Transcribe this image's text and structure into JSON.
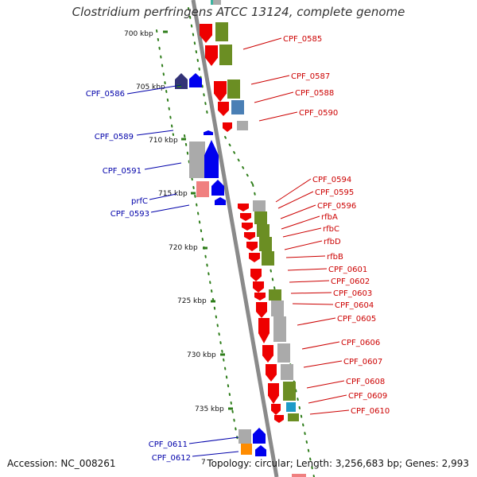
{
  "title": "Clostridium perfringens ATCC 13124, complete genome",
  "footer": {
    "accession_label": "Accession:",
    "accession_value": "NC_008261",
    "stats_text": "Topology: circular; Length: 3,256,683 bp; Genes: 2,993"
  },
  "colors": {
    "backbone": "#8a8a8a",
    "tick": "#2e7d1a",
    "forward_label": "#cc0000",
    "reverse_label": "#0000aa",
    "red_gene": "#ee0000",
    "blue_gene": "#0000ee",
    "navy_gene": "#333377",
    "olive_feature": "#6b8e23",
    "gray_feature": "#aaaaaa",
    "steel_feature": "#4a7fb5",
    "pink_feature": "#f08080",
    "orange_feature": "#ff8c00",
    "cyan_feature": "#1e9bc8",
    "teal_feature": "#3cb3a0"
  },
  "scale_labels": [
    "700 kbp",
    "705 kbp",
    "710 kbp",
    "715 kbp",
    "720 kbp",
    "725 kbp",
    "730 kbp",
    "735 kbp",
    "7"
  ],
  "forward_labels": [
    "CPF_0585",
    "CPF_0587",
    "CPF_0588",
    "CPF_0590",
    "CPF_0594",
    "CPF_0595",
    "CPF_0596",
    "rfbA",
    "rfbC",
    "rfbD",
    "rfbB",
    "CPF_0601",
    "CPF_0602",
    "CPF_0603",
    "CPF_0604",
    "CPF_0605",
    "CPF_0606",
    "CPF_0607",
    "CPF_0608",
    "CPF_0609",
    "CPF_0610"
  ],
  "reverse_labels": [
    "CPF_0586",
    "CPF_0589",
    "CPF_0591",
    "prfC",
    "CPF_0593",
    "CPF_0611",
    "CPF_0612"
  ]
}
